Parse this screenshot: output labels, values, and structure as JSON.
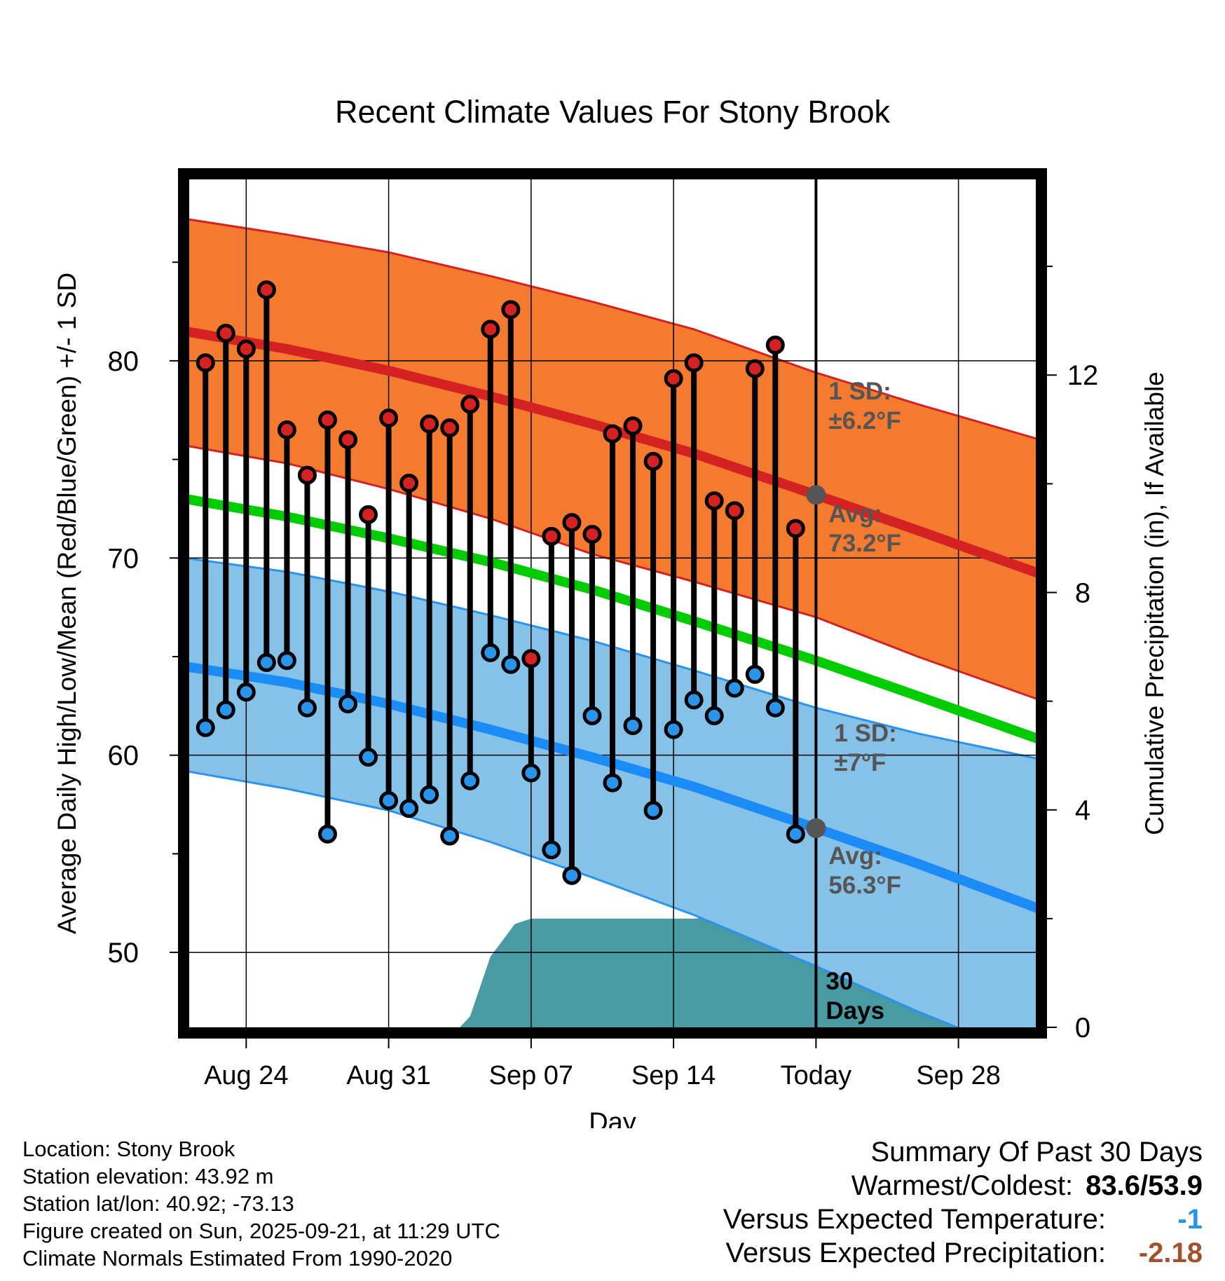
{
  "chart_data": {
    "type": "line",
    "title": "Recent Climate Values For Stony Brook",
    "xlabel": "Day",
    "ylabel": "Average Daily High/Low/Mean (Red/Blue/Green) +/- 1 SD",
    "y2label": "Cumulative Precipitation (in), If Available",
    "ylim": [
      46.2,
      89.2
    ],
    "y2lim": [
      0,
      15.6
    ],
    "yticks": [
      50,
      60,
      70,
      80
    ],
    "y2ticks": [
      0,
      4,
      8,
      12
    ],
    "xlim": [
      0.2,
      41.8
    ],
    "x_ticks": [
      {
        "day": 3,
        "label": "Aug 24"
      },
      {
        "day": 10,
        "label": "Aug 31"
      },
      {
        "day": 17,
        "label": "Sep 07"
      },
      {
        "day": 24,
        "label": "Sep 14"
      },
      {
        "day": 31,
        "label": "Today"
      },
      {
        "day": 38,
        "label": "Sep 28"
      }
    ],
    "normals": {
      "days": [
        0,
        5,
        10,
        15,
        20,
        25,
        31,
        36,
        42
      ],
      "high_avg": [
        81.5,
        80.6,
        79.5,
        78.2,
        76.8,
        75.3,
        73.2,
        71.4,
        69.2
      ],
      "high_upper": [
        87.2,
        86.4,
        85.5,
        84.3,
        83.0,
        81.6,
        79.4,
        77.8,
        76.0
      ],
      "high_lower": [
        75.7,
        74.8,
        73.5,
        72.0,
        70.2,
        68.8,
        67.0,
        65.0,
        62.8
      ],
      "mean_avg": [
        73.0,
        72.1,
        71.0,
        69.8,
        68.4,
        66.8,
        64.8,
        63.0,
        60.8
      ],
      "low_avg": [
        64.5,
        63.7,
        62.6,
        61.3,
        59.9,
        58.4,
        56.3,
        54.5,
        52.2
      ],
      "low_upper": [
        70.0,
        69.3,
        68.3,
        67.1,
        65.8,
        64.3,
        62.4,
        61.1,
        59.8
      ],
      "low_lower": [
        59.2,
        58.3,
        57.2,
        55.6,
        53.8,
        51.9,
        49.3,
        47.0,
        44.5
      ]
    },
    "series": [
      {
        "name": "Daily High",
        "color": "#d42222",
        "days": [
          1,
          2,
          3,
          4,
          5,
          6,
          7,
          8,
          9,
          10,
          11,
          12,
          13,
          14,
          15,
          16,
          17,
          18,
          19,
          20,
          21,
          22,
          23,
          24,
          25,
          26,
          27,
          28,
          29,
          30
        ],
        "values": [
          79.9,
          81.4,
          80.6,
          83.6,
          76.5,
          74.2,
          77.0,
          76.0,
          72.2,
          77.1,
          73.8,
          76.8,
          76.6,
          77.8,
          81.6,
          82.6,
          64.9,
          71.1,
          71.8,
          71.2,
          76.3,
          76.7,
          74.9,
          79.1,
          79.9,
          72.9,
          72.4,
          79.6,
          80.8,
          71.5
        ]
      },
      {
        "name": "Daily Low",
        "color": "#2a93ea",
        "days": [
          1,
          2,
          3,
          4,
          5,
          6,
          7,
          8,
          9,
          10,
          11,
          12,
          13,
          14,
          15,
          16,
          17,
          18,
          19,
          20,
          21,
          22,
          23,
          24,
          25,
          26,
          27,
          28,
          29,
          30
        ],
        "values": [
          61.4,
          62.3,
          63.2,
          64.7,
          64.8,
          62.4,
          56.0,
          62.6,
          59.9,
          57.7,
          57.3,
          58.0,
          55.9,
          58.7,
          65.2,
          64.6,
          59.1,
          55.2,
          53.9,
          62.0,
          58.6,
          61.5,
          57.2,
          61.3,
          62.8,
          62.0,
          63.4,
          64.1,
          62.4,
          56.0
        ]
      },
      {
        "name": "Cumulative Precipitation",
        "color": "#4a9aa3",
        "days": [
          0,
          13.5,
          14.0,
          15.0,
          16.2,
          17.0,
          19.0,
          21.0,
          23.0,
          25.0,
          26.5,
          28.0,
          31.0,
          35.0,
          41.8
        ],
        "values": [
          0,
          0,
          0.2,
          1.3,
          1.9,
          2.0,
          2.0,
          2.0,
          2.0,
          2.0,
          2.05,
          2.07,
          2.07,
          2.07,
          2.07
        ]
      }
    ],
    "annotations": {
      "today_day": 31,
      "high_sd": [
        "1 SD:",
        "±6.2°F"
      ],
      "high_avg": [
        "Avg:",
        "73.2°F"
      ],
      "low_sd": [
        "1 SD:",
        "±7°F"
      ],
      "low_avg": [
        "Avg:",
        "56.3°F"
      ],
      "precip": [
        "30",
        "Days"
      ],
      "today_high_avg": 73.2,
      "today_low_avg": 56.3
    }
  },
  "footer": {
    "location": "Location: Stony Brook",
    "elevation": "Station elevation: 43.92 m",
    "latlon": "Station lat/lon: 40.92; -73.13",
    "created": "Figure created on Sun, 2025-09-21, at 11:29 UTC",
    "normals": "Climate Normals Estimated From 1990-2020"
  },
  "summary": {
    "title": "Summary Of Past 30 Days",
    "warmest_label": "Warmest/Coldest:",
    "warmest_value": "83.6/53.9",
    "temp_label": "Versus Expected Temperature:",
    "temp_value": "-1",
    "temp_color": "#2a93ea",
    "precip_label": "Versus Expected Precipitation:",
    "precip_value": "-2.18",
    "precip_color": "#a0522d"
  }
}
